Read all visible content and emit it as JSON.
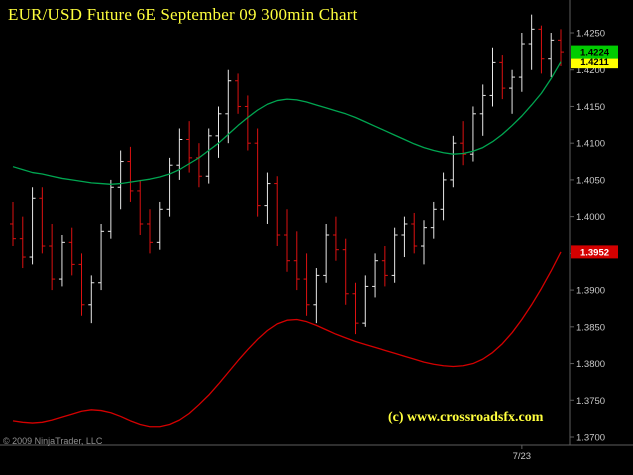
{
  "window": {
    "title": "EUR/USD Future 6E September 09 300min Chart",
    "watermark": "(c) www.crossroadsfx.com",
    "copyright": "© 2009 NinjaTrader, LLC"
  },
  "colors": {
    "background": "#000000",
    "title_text": "#ffff3d",
    "watermark_text": "#ffff3d",
    "copyright_text": "#909090",
    "axis_text": "#c8c8c8",
    "axis_line": "#5e5e5e",
    "up_bar": "#e8e8e8",
    "down_bar": "#dd1111",
    "ma_green": "#00a651",
    "ma_red": "#d40000"
  },
  "chart_data": {
    "type": "candlestick",
    "style": "ohlc-bars",
    "title": "EUR/USD Future 6E September 09 300min Chart",
    "instrument": "EUR/USD Future 6E September 09",
    "interval": "300min",
    "grid": "off",
    "legend": "off",
    "y_axis": {
      "min": 1.37,
      "max": 1.425,
      "tick_step": 0.005,
      "tick_labels": [
        "1.4250",
        "1.4200",
        "1.4150",
        "1.4100",
        "1.4050",
        "1.4000",
        "1.3950",
        "1.3900",
        "1.3850",
        "1.3800",
        "1.3750",
        "1.3700"
      ]
    },
    "x_ticks": [
      {
        "label": "7/23",
        "bar_index": 52
      }
    ],
    "bars_format": "open,high,low,close",
    "bars": [
      [
        1.399,
        1.402,
        1.396,
        1.397
      ],
      [
        1.397,
        1.4,
        1.393,
        1.3945
      ],
      [
        1.3945,
        1.404,
        1.3935,
        1.4025
      ],
      [
        1.4025,
        1.404,
        1.395,
        1.396
      ],
      [
        1.396,
        1.399,
        1.39,
        1.3915
      ],
      [
        1.3915,
        1.3975,
        1.3905,
        1.3965
      ],
      [
        1.3965,
        1.3985,
        1.392,
        1.3935
      ],
      [
        1.3935,
        1.395,
        1.3865,
        1.388
      ],
      [
        1.388,
        1.392,
        1.3855,
        1.391
      ],
      [
        1.391,
        1.399,
        1.39,
        1.398
      ],
      [
        1.398,
        1.405,
        1.397,
        1.404
      ],
      [
        1.404,
        1.409,
        1.401,
        1.4075
      ],
      [
        1.4075,
        1.4095,
        1.402,
        1.4035
      ],
      [
        1.4035,
        1.405,
        1.3975,
        1.399
      ],
      [
        1.399,
        1.401,
        1.395,
        1.3965
      ],
      [
        1.3965,
        1.402,
        1.3955,
        1.401
      ],
      [
        1.401,
        1.408,
        1.4,
        1.407
      ],
      [
        1.407,
        1.412,
        1.405,
        1.4105
      ],
      [
        1.4105,
        1.413,
        1.406,
        1.408
      ],
      [
        1.408,
        1.41,
        1.404,
        1.4055
      ],
      [
        1.4055,
        1.412,
        1.4045,
        1.411
      ],
      [
        1.411,
        1.415,
        1.408,
        1.414
      ],
      [
        1.414,
        1.42,
        1.41,
        1.4185
      ],
      [
        1.4185,
        1.4195,
        1.414,
        1.415
      ],
      [
        1.415,
        1.4165,
        1.409,
        1.41
      ],
      [
        1.41,
        1.412,
        1.4,
        1.4015
      ],
      [
        1.4015,
        1.406,
        1.399,
        1.4045
      ],
      [
        1.4045,
        1.4055,
        1.396,
        1.3975
      ],
      [
        1.3975,
        1.401,
        1.3925,
        1.394
      ],
      [
        1.394,
        1.398,
        1.39,
        1.3915
      ],
      [
        1.3915,
        1.395,
        1.3865,
        1.388
      ],
      [
        1.388,
        1.393,
        1.3855,
        1.392
      ],
      [
        1.392,
        1.399,
        1.391,
        1.3975
      ],
      [
        1.3975,
        1.4,
        1.394,
        1.3955
      ],
      [
        1.3955,
        1.397,
        1.388,
        1.3895
      ],
      [
        1.3895,
        1.391,
        1.384,
        1.3855
      ],
      [
        1.3855,
        1.392,
        1.385,
        1.3905
      ],
      [
        1.3905,
        1.395,
        1.389,
        1.394
      ],
      [
        1.394,
        1.396,
        1.3905,
        1.392
      ],
      [
        1.392,
        1.3985,
        1.391,
        1.3975
      ],
      [
        1.3975,
        1.4,
        1.3945,
        1.399
      ],
      [
        1.399,
        1.4005,
        1.395,
        1.396
      ],
      [
        1.396,
        1.3995,
        1.3935,
        1.3985
      ],
      [
        1.3985,
        1.402,
        1.397,
        1.401
      ],
      [
        1.401,
        1.406,
        1.3995,
        1.405
      ],
      [
        1.405,
        1.411,
        1.404,
        1.41
      ],
      [
        1.41,
        1.413,
        1.407,
        1.4085
      ],
      [
        1.4085,
        1.415,
        1.4075,
        1.414
      ],
      [
        1.414,
        1.418,
        1.411,
        1.4165
      ],
      [
        1.4165,
        1.423,
        1.415,
        1.421
      ],
      [
        1.421,
        1.422,
        1.416,
        1.4175
      ],
      [
        1.4175,
        1.42,
        1.414,
        1.419
      ],
      [
        1.419,
        1.425,
        1.417,
        1.4235
      ],
      [
        1.4235,
        1.4275,
        1.42,
        1.4255
      ],
      [
        1.4255,
        1.426,
        1.4195,
        1.4215
      ],
      [
        1.4215,
        1.425,
        1.419,
        1.424
      ],
      [
        1.424,
        1.4255,
        1.4205,
        1.4224
      ]
    ],
    "series": [
      {
        "name": "ma-green",
        "color": "#00a651",
        "values": [
          1.4068,
          1.4064,
          1.406,
          1.4058,
          1.4055,
          1.4052,
          1.405,
          1.4048,
          1.4046,
          1.4045,
          1.4044,
          1.4045,
          1.4047,
          1.4049,
          1.4051,
          1.4054,
          1.4058,
          1.4064,
          1.4072,
          1.408,
          1.409,
          1.41,
          1.4112,
          1.4124,
          1.4135,
          1.4145,
          1.4153,
          1.4158,
          1.416,
          1.4159,
          1.4156,
          1.4152,
          1.4148,
          1.4144,
          1.414,
          1.4135,
          1.4129,
          1.4123,
          1.4117,
          1.4111,
          1.4105,
          1.4099,
          1.4094,
          1.409,
          1.4087,
          1.4085,
          1.4086,
          1.4089,
          1.4094,
          1.4102,
          1.4112,
          1.4124,
          1.4137,
          1.4152,
          1.4168,
          1.4188,
          1.4211
        ]
      },
      {
        "name": "ma-red",
        "color": "#d40000",
        "values": [
          1.3722,
          1.372,
          1.3719,
          1.372,
          1.3723,
          1.3727,
          1.3731,
          1.3735,
          1.3737,
          1.3736,
          1.3733,
          1.3728,
          1.3722,
          1.3717,
          1.3714,
          1.3714,
          1.3717,
          1.3723,
          1.3732,
          1.3744,
          1.3757,
          1.3772,
          1.3788,
          1.3804,
          1.3819,
          1.3833,
          1.3845,
          1.3854,
          1.3859,
          1.386,
          1.3857,
          1.3852,
          1.3846,
          1.384,
          1.3835,
          1.383,
          1.3826,
          1.3822,
          1.3818,
          1.3814,
          1.381,
          1.3806,
          1.3802,
          1.3799,
          1.3797,
          1.3796,
          1.3797,
          1.38,
          1.3806,
          1.3815,
          1.3827,
          1.3842,
          1.386,
          1.388,
          1.3902,
          1.3926,
          1.3952
        ]
      }
    ],
    "price_markers": [
      {
        "name": "last-price",
        "label": "1.4224",
        "value": 1.4224,
        "bg": "#00cc00",
        "fg": "#000000"
      },
      {
        "name": "ma-green-value",
        "label": "1.4211",
        "value": 1.4211,
        "bg": "#ffff00",
        "fg": "#000000"
      },
      {
        "name": "ma-red-value",
        "label": "1.3952",
        "value": 1.3952,
        "bg": "#d40000",
        "fg": "#ffffff"
      }
    ]
  }
}
